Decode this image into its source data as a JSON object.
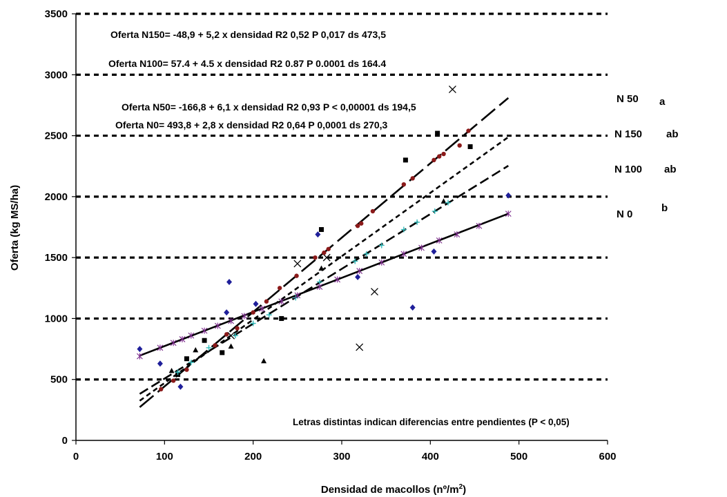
{
  "chart_data": {
    "type": "scatter",
    "xlabel": "Densidad de macollos (nº/m",
    "xlabel_sup": "2",
    "xlabel_end": ")",
    "ylabel": "Oferta (kg MS/ha)",
    "xlim": [
      0,
      600
    ],
    "ylim": [
      0,
      3500
    ],
    "xticks": [
      0,
      100,
      200,
      300,
      400,
      500,
      600
    ],
    "yticks": [
      0,
      500,
      1000,
      1500,
      2000,
      2500,
      3000,
      3500
    ],
    "grid": "horizontal-dashed",
    "equations": [
      "Oferta N150= -48,9 + 5,2 x densidad  R2 0,52  P 0,017  ds 473,5",
      "Oferta N100= 57.4 + 4.5 x densidad  R2 0.87  P 0.0001  ds 164.4",
      "Oferta N50= -166,8 + 6,1 x densidad  R2 0,93  P < 0,00001  ds 194,5",
      "Oferta N0= 493,8 + 2,8 x densidad  R2 0,64  P 0,0001 ds 270,3"
    ],
    "note": "Letras distintas indican diferencias entre pendientes (P < 0,05)",
    "series": [
      {
        "name": "N 50",
        "letter": "a",
        "marker": "x",
        "color": "#000000",
        "intercept": -166.8,
        "slope": 6.1,
        "x_range": [
          72,
          488
        ],
        "line_style": "long-dash",
        "points": [
          [
            175,
            860
          ],
          [
            250,
            1450
          ],
          [
            283,
            1500
          ],
          [
            320,
            765
          ],
          [
            337,
            1220
          ],
          [
            425,
            2880
          ]
        ]
      },
      {
        "name": "N 150",
        "letter": "ab",
        "marker": "square",
        "color": "#000000",
        "intercept": -48.9,
        "slope": 5.2,
        "x_range": [
          72,
          488
        ],
        "line_style": "short-dash",
        "points": [
          [
            115,
            540
          ],
          [
            125,
            670
          ],
          [
            145,
            820
          ],
          [
            165,
            720
          ],
          [
            232,
            1000
          ],
          [
            277,
            1730
          ],
          [
            372,
            2300
          ],
          [
            408,
            2520
          ],
          [
            445,
            2410
          ]
        ]
      },
      {
        "name": "N 100",
        "letter": "ab",
        "marker": "triangle",
        "color": "#000000",
        "intercept": 57.4,
        "slope": 4.5,
        "x_range": [
          72,
          488
        ],
        "line_style": "medium-dash",
        "points": [
          [
            108,
            570
          ],
          [
            135,
            740
          ],
          [
            175,
            770
          ],
          [
            212,
            650
          ],
          [
            277,
            1410
          ],
          [
            415,
            1960
          ]
        ]
      },
      {
        "name": "N 0",
        "letter": "b",
        "marker": "line",
        "color": "#000000",
        "intercept": 493.8,
        "slope": 2.8,
        "x_range": [
          72,
          488
        ],
        "line_style": "solid",
        "points": []
      },
      {
        "name": "",
        "marker": "diamond",
        "color": "#1f1f9a",
        "points": [
          [
            72,
            750
          ],
          [
            95,
            630
          ],
          [
            118,
            440
          ],
          [
            170,
            1050
          ],
          [
            173,
            1300
          ],
          [
            203,
            1120
          ],
          [
            273,
            1690
          ],
          [
            318,
            1340
          ],
          [
            380,
            1090
          ],
          [
            404,
            1550
          ],
          [
            488,
            2010
          ]
        ]
      },
      {
        "name": "",
        "marker": "dot",
        "color": "#8b1a1a",
        "points": [
          [
            96,
            420
          ],
          [
            110,
            490
          ],
          [
            125,
            580
          ],
          [
            157,
            780
          ],
          [
            170,
            870
          ],
          [
            182,
            920
          ],
          [
            200,
            1050
          ],
          [
            215,
            1140
          ],
          [
            230,
            1250
          ],
          [
            249,
            1350
          ],
          [
            270,
            1500
          ],
          [
            280,
            1540
          ],
          [
            285,
            1570
          ],
          [
            318,
            1760
          ],
          [
            322,
            1780
          ],
          [
            335,
            1880
          ],
          [
            370,
            2100
          ],
          [
            380,
            2150
          ],
          [
            404,
            2300
          ],
          [
            410,
            2330
          ],
          [
            415,
            2350
          ],
          [
            433,
            2420
          ],
          [
            443,
            2540
          ]
        ]
      },
      {
        "name": "",
        "marker": "plus",
        "color": "#33bbbb",
        "points": [
          [
            115,
            560
          ],
          [
            130,
            640
          ],
          [
            150,
            760
          ],
          [
            180,
            860
          ],
          [
            200,
            960
          ],
          [
            218,
            1030
          ],
          [
            248,
            1170
          ],
          [
            275,
            1300
          ],
          [
            315,
            1470
          ],
          [
            328,
            1530
          ],
          [
            345,
            1600
          ],
          [
            370,
            1730
          ],
          [
            385,
            1790
          ],
          [
            405,
            1880
          ],
          [
            420,
            1950
          ]
        ]
      },
      {
        "name": "",
        "marker": "star",
        "color": "#7a2a8a",
        "points": [
          [
            72,
            690
          ],
          [
            95,
            760
          ],
          [
            110,
            800
          ],
          [
            120,
            830
          ],
          [
            130,
            860
          ],
          [
            145,
            900
          ],
          [
            160,
            940
          ],
          [
            175,
            980
          ],
          [
            190,
            1020
          ],
          [
            210,
            1080
          ],
          [
            232,
            1140
          ],
          [
            250,
            1190
          ],
          [
            275,
            1260
          ],
          [
            295,
            1320
          ],
          [
            320,
            1390
          ],
          [
            345,
            1460
          ],
          [
            370,
            1530
          ],
          [
            390,
            1580
          ],
          [
            410,
            1640
          ],
          [
            430,
            1690
          ],
          [
            455,
            1760
          ],
          [
            488,
            1860
          ]
        ]
      }
    ]
  }
}
